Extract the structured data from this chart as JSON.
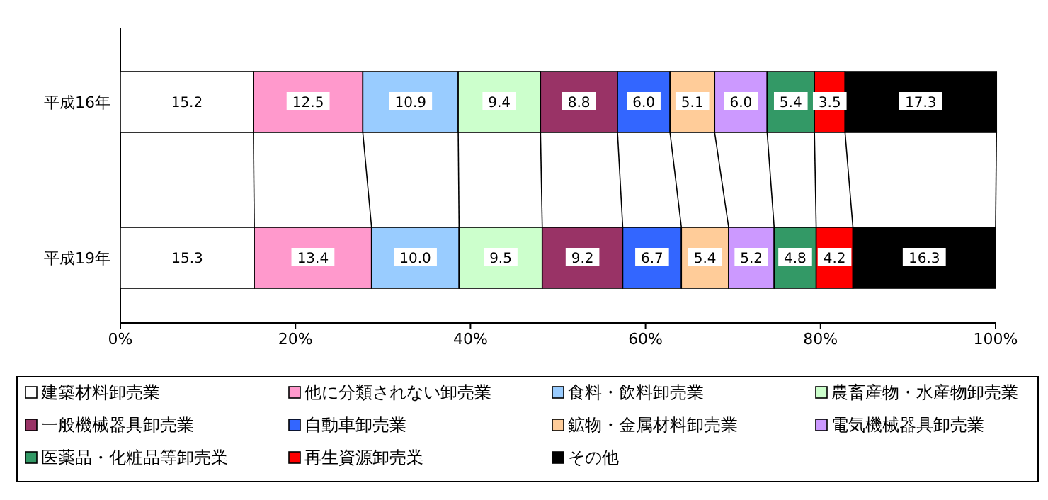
{
  "chart_data": {
    "type": "bar",
    "orientation": "horizontal",
    "stacked": true,
    "categories": [
      "平成16年",
      "平成19年"
    ],
    "xlim": [
      0,
      100
    ],
    "xticks": [
      {
        "value": 0,
        "label": "0%"
      },
      {
        "value": 20,
        "label": "20%"
      },
      {
        "value": 40,
        "label": "40%"
      },
      {
        "value": 60,
        "label": "60%"
      },
      {
        "value": 80,
        "label": "80%"
      },
      {
        "value": 100,
        "label": "100%"
      }
    ],
    "legend": "bottom",
    "grid": false,
    "series": [
      {
        "name": "建築材料卸売業",
        "color": "#ffffff",
        "values": [
          15.2,
          15.3
        ],
        "value_labels": [
          "15.2",
          "15.3"
        ]
      },
      {
        "name": "他に分類されない卸売業",
        "color": "#ff99cc",
        "values": [
          12.5,
          13.4
        ],
        "value_labels": [
          "12.5",
          "13.4"
        ]
      },
      {
        "name": "食料・飲料卸売業",
        "color": "#99ccff",
        "values": [
          10.9,
          10.0
        ],
        "value_labels": [
          "10.9",
          "10.0"
        ]
      },
      {
        "name": "農畜産物・水産物卸売業",
        "color": "#ccffcc",
        "values": [
          9.4,
          9.5
        ],
        "value_labels": [
          "9.4",
          "9.5"
        ]
      },
      {
        "name": "一般機械器具卸売業",
        "color": "#993366",
        "values": [
          8.8,
          9.2
        ],
        "value_labels": [
          "8.8",
          "9.2"
        ]
      },
      {
        "name": "自動車卸売業",
        "color": "#3366ff",
        "values": [
          6.0,
          6.7
        ],
        "value_labels": [
          "6.0",
          "6.7"
        ]
      },
      {
        "name": "鉱物・金属材料卸売業",
        "color": "#ffcc99",
        "values": [
          5.1,
          5.4
        ],
        "value_labels": [
          "5.1",
          "5.4"
        ]
      },
      {
        "name": "電気機械器具卸売業",
        "color": "#cc99ff",
        "values": [
          6.0,
          5.2
        ],
        "value_labels": [
          "6.0",
          "5.2"
        ]
      },
      {
        "name": "医薬品・化粧品等卸売業",
        "color": "#339966",
        "values": [
          5.4,
          4.8
        ],
        "value_labels": [
          "5.4",
          "4.8"
        ]
      },
      {
        "name": "再生資源卸売業",
        "color": "#ff0000",
        "values": [
          3.5,
          4.2
        ],
        "value_labels": [
          "3.5",
          "4.2"
        ]
      },
      {
        "name": "その他",
        "color": "#000000",
        "values": [
          17.3,
          16.3
        ],
        "value_labels": [
          "17.3",
          "16.3"
        ]
      }
    ]
  }
}
